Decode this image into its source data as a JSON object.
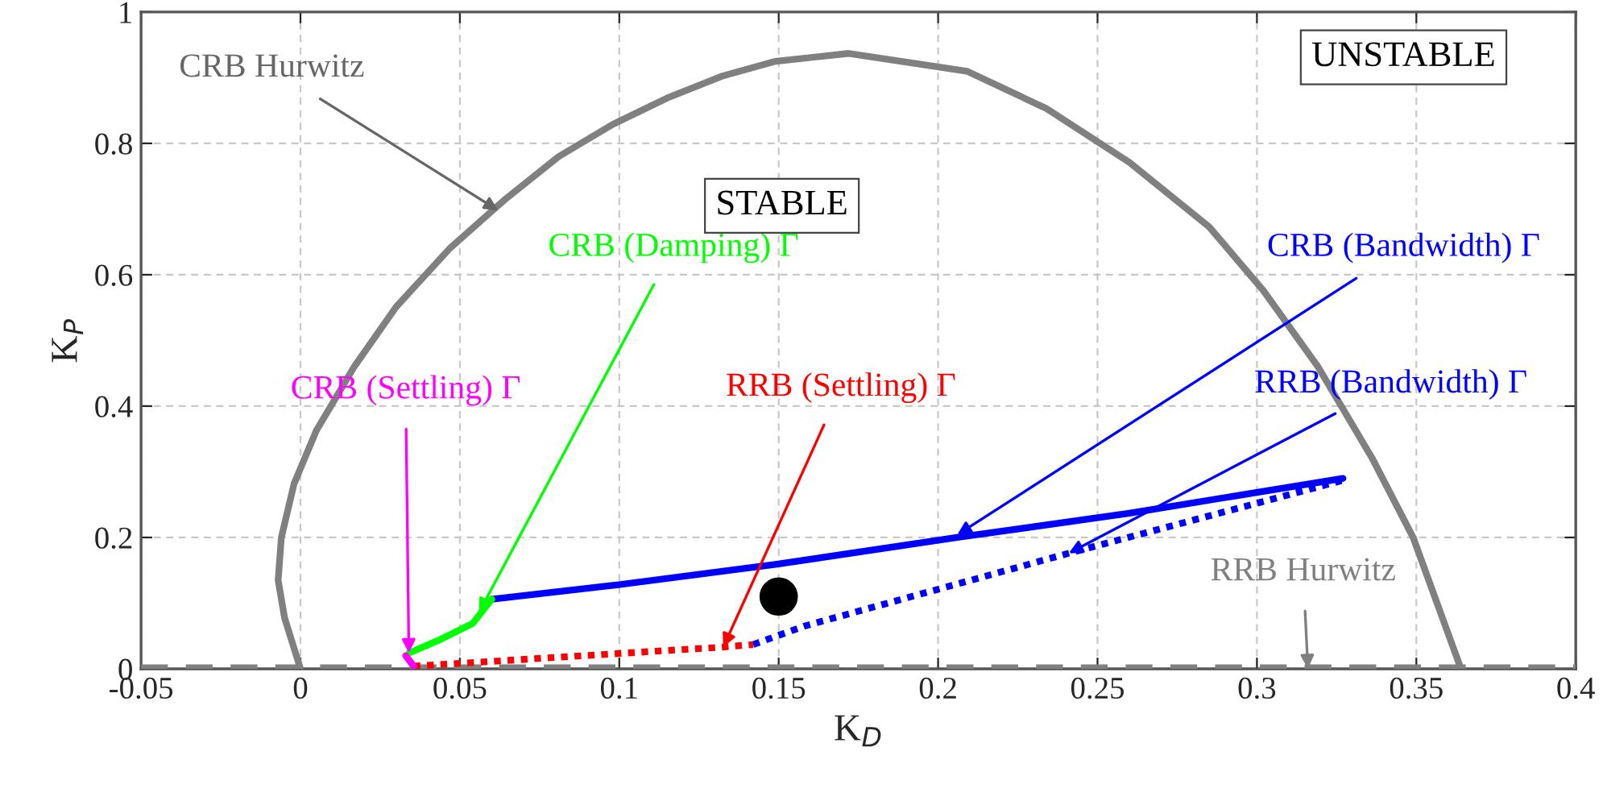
{
  "chart_data": {
    "type": "line",
    "xlabel": "K$_{D}$",
    "ylabel": "K$_{P}$",
    "xlim": [
      -0.05,
      0.4
    ],
    "ylim": [
      0,
      1
    ],
    "xticks": [
      -0.05,
      0,
      0.05,
      0.1,
      0.15,
      0.2,
      0.25,
      0.3,
      0.35,
      0.4
    ],
    "yticks": [
      0,
      0.2,
      0.4,
      0.6,
      0.8,
      1
    ],
    "grid": true,
    "series": [
      {
        "color": "#808080",
        "line_style": "solid",
        "x": [
          0,
          -0.005,
          -0.007,
          -0.006,
          -0.002,
          0.005,
          0.017,
          0.03,
          0.047,
          0.064,
          0.081,
          0.098,
          0.115,
          0.132,
          0.149,
          0.172,
          0.209,
          0.234,
          0.26,
          0.285,
          0.302,
          0.319,
          0.336,
          0.349,
          0.364
        ],
        "values": [
          0,
          0.078,
          0.135,
          0.2,
          0.282,
          0.363,
          0.461,
          0.551,
          0.641,
          0.714,
          0.78,
          0.829,
          0.869,
          0.902,
          0.925,
          0.937,
          0.91,
          0.853,
          0.771,
          0.673,
          0.576,
          0.461,
          0.322,
          0.2,
          0
        ]
      },
      {
        "color": "#808080",
        "line_style": "dashed",
        "x": [
          -0.05,
          0.4
        ],
        "values": [
          0,
          0
        ]
      },
      {
        "color": "#0000ff",
        "line_style": "solid",
        "x": [
          0.06,
          0.098,
          0.149,
          0.206,
          0.26,
          0.327
        ],
        "values": [
          0.106,
          0.127,
          0.159,
          0.2,
          0.237,
          0.29
        ]
      },
      {
        "color": "#0000ff",
        "line_style": "dotted",
        "x": [
          0.142,
          0.158,
          0.241,
          0.327
        ],
        "values": [
          0.037,
          0.065,
          0.176,
          0.287
        ]
      },
      {
        "color": "#ff0000",
        "line_style": "dotted",
        "x": [
          0.0355,
          0.132,
          0.142
        ],
        "values": [
          0.004,
          0.033,
          0.037
        ]
      },
      {
        "color": "#00ff00",
        "line_style": "solid",
        "x": [
          0.034,
          0.044,
          0.054,
          0.06
        ],
        "values": [
          0.024,
          0.045,
          0.069,
          0.106
        ]
      },
      {
        "color": "#ff00ff",
        "line_style": "solid",
        "x": [
          0.033,
          0.0355
        ],
        "values": [
          0.02,
          0.004
        ]
      },
      {
        "type": "scatter",
        "marker": "circle",
        "color": "#000000",
        "x": [
          0.15
        ],
        "values": [
          0.11
        ]
      }
    ],
    "annotations": [
      {
        "text": "CRB Hurwitz",
        "x": 0.062,
        "y": 0.698
      },
      {
        "text": "CRB (Damping) Γ",
        "x": 0.056,
        "y": 0.086
      },
      {
        "text": "CRB (Settling) Γ",
        "x": 0.034,
        "y": 0.024
      },
      {
        "text": "RRB (Settling) Γ",
        "x": 0.1326,
        "y": 0.033
      },
      {
        "text": "CRB (Bandwidth) Γ",
        "x": 0.206,
        "y": 0.204
      },
      {
        "text": "RRB (Bandwidth) Γ",
        "x": 0.241,
        "y": 0.176
      },
      {
        "text": "RRB Hurwitz",
        "x": 0.316,
        "y": 0
      },
      "STABLE",
      "UNSTABLE"
    ]
  }
}
